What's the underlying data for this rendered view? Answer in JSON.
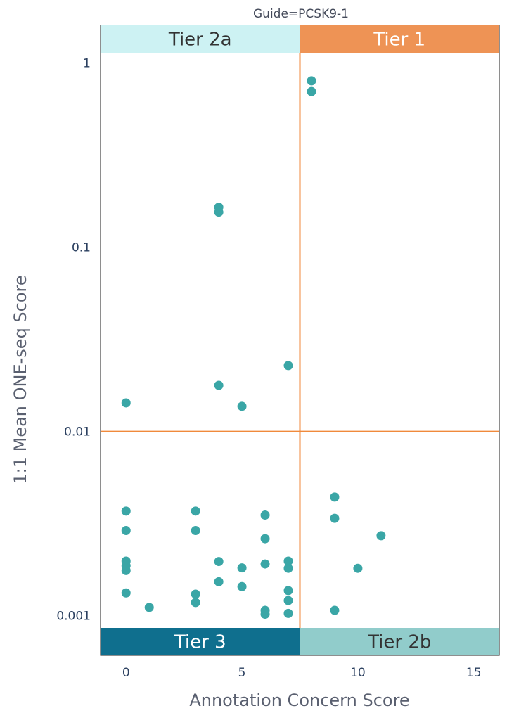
{
  "chart_data": {
    "type": "scatter",
    "title": "Guide=PCSK9-1",
    "xlabel": "Annotation Concern Score",
    "ylabel": "1:1 Mean ONE-seq Score",
    "x_scale": "linear",
    "y_scale": "log",
    "xlim": [
      -1.1,
      16.1
    ],
    "ylim": [
      0.00061,
      1.6
    ],
    "x_ticks": [
      0,
      5,
      10,
      15
    ],
    "x_tick_labels": [
      "0",
      "5",
      "10",
      "15"
    ],
    "y_ticks": [
      0.001,
      0.01,
      0.1,
      1
    ],
    "y_tick_labels": [
      "0.001",
      "0.01",
      "0.1",
      "1"
    ],
    "grid": false,
    "thresholds": {
      "x": 7.5,
      "y": 0.01,
      "color": "#f08a3c"
    },
    "marker_color": "#3aa6a6",
    "tiers": [
      {
        "label": "Tier 2a",
        "position": "top-left",
        "fill": "#cdf2f3",
        "text_color": "#333333"
      },
      {
        "label": "Tier 1",
        "position": "top-right",
        "fill": "#ee9355",
        "text_color": "#ffffff"
      },
      {
        "label": "Tier 3",
        "position": "bottom-left",
        "fill": "#0f6f8e",
        "text_color": "#ffffff"
      },
      {
        "label": "Tier 2b",
        "position": "bottom-right",
        "fill": "#91cccb",
        "text_color": "#333333"
      }
    ],
    "points": [
      {
        "x": 0,
        "y": 0.0143
      },
      {
        "x": 0,
        "y": 0.0037
      },
      {
        "x": 0,
        "y": 0.0029
      },
      {
        "x": 0,
        "y": 0.00198
      },
      {
        "x": 0,
        "y": 0.00187
      },
      {
        "x": 0,
        "y": 0.00176
      },
      {
        "x": 0,
        "y": 0.00133
      },
      {
        "x": 1,
        "y": 0.00111
      },
      {
        "x": 3,
        "y": 0.0037
      },
      {
        "x": 3,
        "y": 0.0029
      },
      {
        "x": 3,
        "y": 0.00131
      },
      {
        "x": 3,
        "y": 0.00118
      },
      {
        "x": 4,
        "y": 0.165
      },
      {
        "x": 4,
        "y": 0.155
      },
      {
        "x": 4,
        "y": 0.0178
      },
      {
        "x": 4,
        "y": 0.00197
      },
      {
        "x": 4,
        "y": 0.00153
      },
      {
        "x": 5,
        "y": 0.0137
      },
      {
        "x": 5,
        "y": 0.00182
      },
      {
        "x": 5,
        "y": 0.00144
      },
      {
        "x": 6,
        "y": 0.00352
      },
      {
        "x": 6,
        "y": 0.00262
      },
      {
        "x": 6,
        "y": 0.00191
      },
      {
        "x": 6,
        "y": 0.00107
      },
      {
        "x": 6,
        "y": 0.00102
      },
      {
        "x": 7,
        "y": 0.0228
      },
      {
        "x": 7,
        "y": 0.00198
      },
      {
        "x": 7,
        "y": 0.00181
      },
      {
        "x": 7,
        "y": 0.00137
      },
      {
        "x": 7,
        "y": 0.00121
      },
      {
        "x": 7,
        "y": 0.00103
      },
      {
        "x": 8,
        "y": 0.8
      },
      {
        "x": 8,
        "y": 0.7
      },
      {
        "x": 9,
        "y": 0.00441
      },
      {
        "x": 9,
        "y": 0.00338
      },
      {
        "x": 9,
        "y": 0.00107
      },
      {
        "x": 10,
        "y": 0.00181
      },
      {
        "x": 11,
        "y": 0.00272
      }
    ]
  }
}
